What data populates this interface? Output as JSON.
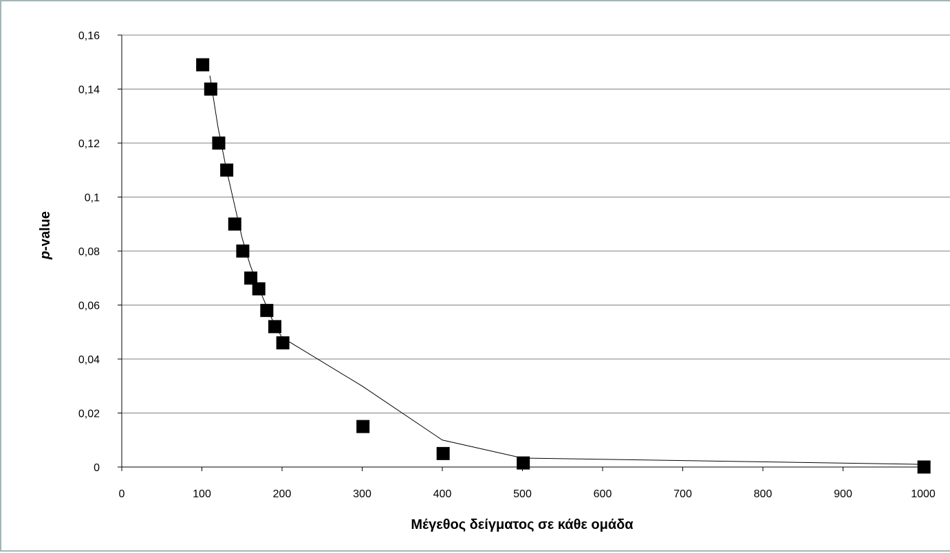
{
  "chart_data": {
    "type": "scatter",
    "xlabel": "Μέγεθος δείγματος σε κάθε ομάδα",
    "ylabel_italic_part": "p",
    "ylabel_rest": "-value",
    "xlim": [
      0,
      1000
    ],
    "ylim": [
      0,
      0.16
    ],
    "x_ticks": [
      0,
      100,
      200,
      300,
      400,
      500,
      600,
      700,
      800,
      900,
      1000
    ],
    "x_tick_labels": [
      "0",
      "100",
      "200",
      "300",
      "400",
      "500",
      "600",
      "700",
      "800",
      "900",
      "1000"
    ],
    "y_ticks": [
      0,
      0.02,
      0.04,
      0.06,
      0.08,
      0.1,
      0.12,
      0.14,
      0.16
    ],
    "y_tick_labels": [
      "0",
      "0,02",
      "0,04",
      "0,06",
      "0,08",
      "0,1",
      "0,12",
      "0,14",
      "0,16"
    ],
    "grid": "horizontal",
    "legend": "none",
    "colors": {
      "marker": "#000000",
      "line": "#000000",
      "grid": "#808080"
    },
    "series": [
      {
        "style": "markers",
        "marker": "square",
        "points": [
          {
            "x": 101,
            "y": 0.149
          },
          {
            "x": 111,
            "y": 0.14
          },
          {
            "x": 121,
            "y": 0.12
          },
          {
            "x": 131,
            "y": 0.11
          },
          {
            "x": 141,
            "y": 0.09
          },
          {
            "x": 151,
            "y": 0.08
          },
          {
            "x": 161,
            "y": 0.07
          },
          {
            "x": 171,
            "y": 0.066
          },
          {
            "x": 181,
            "y": 0.058
          },
          {
            "x": 191,
            "y": 0.052
          },
          {
            "x": 201,
            "y": 0.046
          },
          {
            "x": 301,
            "y": 0.015
          },
          {
            "x": 401,
            "y": 0.005
          },
          {
            "x": 501,
            "y": 0.0015
          },
          {
            "x": 1001,
            "y": 0.0
          }
        ]
      },
      {
        "style": "line",
        "points": [
          {
            "x": 110,
            "y": 0.145
          },
          {
            "x": 120,
            "y": 0.126
          },
          {
            "x": 130,
            "y": 0.111
          },
          {
            "x": 140,
            "y": 0.098
          },
          {
            "x": 150,
            "y": 0.085
          },
          {
            "x": 160,
            "y": 0.075
          },
          {
            "x": 170,
            "y": 0.067
          },
          {
            "x": 180,
            "y": 0.06
          },
          {
            "x": 190,
            "y": 0.053
          },
          {
            "x": 200,
            "y": 0.048
          },
          {
            "x": 300,
            "y": 0.03
          },
          {
            "x": 400,
            "y": 0.01
          },
          {
            "x": 500,
            "y": 0.0033
          },
          {
            "x": 1000,
            "y": 0.001
          }
        ]
      }
    ]
  }
}
